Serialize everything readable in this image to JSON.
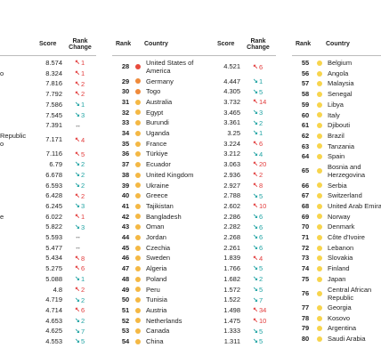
{
  "headers": {
    "panel1": {
      "score": "Score",
      "rank_change": "Rank Change"
    },
    "panel2": {
      "rank": "Rank",
      "country": "Country",
      "score": "Score",
      "rank_change": "Rank Change"
    },
    "panel3": {
      "rank": "Rank",
      "country": "Country"
    }
  },
  "panel1_rows": [
    {
      "country": "",
      "score": "8.574",
      "dir": "down",
      "num": "1"
    },
    {
      "country": "o",
      "score": "8.324",
      "dir": "down",
      "num": "1"
    },
    {
      "country": "",
      "score": "7.816",
      "dir": "down",
      "num": "2"
    },
    {
      "country": "",
      "score": "7.792",
      "dir": "down",
      "num": "2"
    },
    {
      "country": "",
      "score": "7.586",
      "dir": "up",
      "num": "1"
    },
    {
      "country": "",
      "score": "7.545",
      "dir": "up",
      "num": "3"
    },
    {
      "country": "",
      "score": "7.391",
      "dir": "same",
      "num": ""
    },
    {
      "country": "Republic\no",
      "score": "7.171",
      "dir": "down",
      "num": "4",
      "two": true
    },
    {
      "country": "",
      "score": "7.116",
      "dir": "down",
      "num": "5"
    },
    {
      "country": "",
      "score": "6.79",
      "dir": "up",
      "num": "2"
    },
    {
      "country": "",
      "score": "6.678",
      "dir": "up",
      "num": "2"
    },
    {
      "country": "",
      "score": "6.593",
      "dir": "up",
      "num": "2"
    },
    {
      "country": "",
      "score": "6.428",
      "dir": "down",
      "num": "2"
    },
    {
      "country": "",
      "score": "6.245",
      "dir": "up",
      "num": "3"
    },
    {
      "country": "e",
      "score": "6.022",
      "dir": "down",
      "num": "1"
    },
    {
      "country": "",
      "score": "5.822",
      "dir": "up",
      "num": "3"
    },
    {
      "country": "",
      "score": "5.593",
      "dir": "same",
      "num": ""
    },
    {
      "country": "",
      "score": "5.477",
      "dir": "same",
      "num": ""
    },
    {
      "country": "",
      "score": "5.434",
      "dir": "down",
      "num": "8"
    },
    {
      "country": "",
      "score": "5.275",
      "dir": "down",
      "num": "6"
    },
    {
      "country": "",
      "score": "5.088",
      "dir": "up",
      "num": "1"
    },
    {
      "country": "",
      "score": "4.8",
      "dir": "down",
      "num": "2"
    },
    {
      "country": "",
      "score": "4.719",
      "dir": "up",
      "num": "2"
    },
    {
      "country": "",
      "score": "4.714",
      "dir": "down",
      "num": "6"
    },
    {
      "country": "",
      "score": "4.653",
      "dir": "up",
      "num": "2"
    },
    {
      "country": "",
      "score": "4.625",
      "dir": "up",
      "num": "7"
    },
    {
      "country": "",
      "score": "4.553",
      "dir": "up",
      "num": "5"
    }
  ],
  "panel2_rows": [
    {
      "rank": "28",
      "country": "United States of\nAmerica",
      "score": "4.521",
      "dir": "down",
      "num": "6",
      "color": "#e84a3c",
      "two": true
    },
    {
      "rank": "29",
      "country": "Germany",
      "score": "4.447",
      "dir": "up",
      "num": "1",
      "color": "#ef8a3a"
    },
    {
      "rank": "30",
      "country": "Togo",
      "score": "4.305",
      "dir": "up",
      "num": "5",
      "color": "#ef8a3a"
    },
    {
      "rank": "31",
      "country": "Australia",
      "score": "3.732",
      "dir": "down",
      "num": "14",
      "color": "#f4b844"
    },
    {
      "rank": "32",
      "country": "Egypt",
      "score": "3.465",
      "dir": "up",
      "num": "3",
      "color": "#f4b844"
    },
    {
      "rank": "33",
      "country": "Burundi",
      "score": "3.361",
      "dir": "up",
      "num": "2",
      "color": "#f4b844"
    },
    {
      "rank": "34",
      "country": "Uganda",
      "score": "3.25",
      "dir": "up",
      "num": "1",
      "color": "#f4b844"
    },
    {
      "rank": "35",
      "country": "France",
      "score": "3.224",
      "dir": "down",
      "num": "6",
      "color": "#f4b844"
    },
    {
      "rank": "36",
      "country": "Türkiye",
      "score": "3.212",
      "dir": "up",
      "num": "4",
      "color": "#f4b844"
    },
    {
      "rank": "37",
      "country": "Ecuador",
      "score": "3.063",
      "dir": "down",
      "num": "20",
      "color": "#f4b844"
    },
    {
      "rank": "38",
      "country": "United Kingdom",
      "score": "2.936",
      "dir": "down",
      "num": "2",
      "color": "#f4b844"
    },
    {
      "rank": "39",
      "country": "Ukraine",
      "score": "2.927",
      "dir": "down",
      "num": "8",
      "color": "#f4b844"
    },
    {
      "rank": "40",
      "country": "Greece",
      "score": "2.788",
      "dir": "up",
      "num": "5",
      "color": "#f4b844"
    },
    {
      "rank": "41",
      "country": "Tajikistan",
      "score": "2.602",
      "dir": "down",
      "num": "10",
      "color": "#f4b844"
    },
    {
      "rank": "42",
      "country": "Bangladesh",
      "score": "2.286",
      "dir": "up",
      "num": "6",
      "color": "#f4b844"
    },
    {
      "rank": "43",
      "country": "Oman",
      "score": "2.282",
      "dir": "up",
      "num": "6",
      "color": "#f4b844"
    },
    {
      "rank": "44",
      "country": "Jordan",
      "score": "2.268",
      "dir": "up",
      "num": "6",
      "color": "#f4b844"
    },
    {
      "rank": "45",
      "country": "Czechia",
      "score": "2.261",
      "dir": "up",
      "num": "6",
      "color": "#f4b844"
    },
    {
      "rank": "46",
      "country": "Sweden",
      "score": "1.839",
      "dir": "down",
      "num": "4",
      "color": "#f4b844"
    },
    {
      "rank": "47",
      "country": "Algeria",
      "score": "1.766",
      "dir": "up",
      "num": "5",
      "color": "#f4b844"
    },
    {
      "rank": "48",
      "country": "Poland",
      "score": "1.682",
      "dir": "up",
      "num": "2",
      "color": "#f4b844"
    },
    {
      "rank": "49",
      "country": "Peru",
      "score": "1.572",
      "dir": "up",
      "num": "5",
      "color": "#f4b844"
    },
    {
      "rank": "50",
      "country": "Tunisia",
      "score": "1.522",
      "dir": "up",
      "num": "7",
      "color": "#f4b844"
    },
    {
      "rank": "51",
      "country": "Austria",
      "score": "1.498",
      "dir": "down",
      "num": "34",
      "color": "#f4b844"
    },
    {
      "rank": "52",
      "country": "Netherlands",
      "score": "1.475",
      "dir": "down",
      "num": "10",
      "color": "#f4b844"
    },
    {
      "rank": "53",
      "country": "Canada",
      "score": "1.333",
      "dir": "up",
      "num": "5",
      "color": "#f4b844"
    },
    {
      "rank": "54",
      "country": "China",
      "score": "1.311",
      "dir": "up",
      "num": "5",
      "color": "#f4b844"
    }
  ],
  "panel3_rows": [
    {
      "rank": "55",
      "country": "Belgium",
      "color": "#f7d44c"
    },
    {
      "rank": "56",
      "country": "Angola",
      "color": "#f7d44c"
    },
    {
      "rank": "57",
      "country": "Malaysia",
      "color": "#f7d44c"
    },
    {
      "rank": "58",
      "country": "Senegal",
      "color": "#f7d44c"
    },
    {
      "rank": "59",
      "country": "Libya",
      "color": "#f7d44c"
    },
    {
      "rank": "60",
      "country": "Italy",
      "color": "#f7d44c"
    },
    {
      "rank": "61",
      "country": "Djibouti",
      "color": "#f7d44c"
    },
    {
      "rank": "62",
      "country": "Brazil",
      "color": "#f7d44c"
    },
    {
      "rank": "63",
      "country": "Tanzania",
      "color": "#f7d44c"
    },
    {
      "rank": "64",
      "country": "Spain",
      "color": "#f7d44c"
    },
    {
      "rank": "65",
      "country": "Bosnia and\nHerzegovina",
      "color": "#f7d44c",
      "two": true
    },
    {
      "rank": "66",
      "country": "Serbia",
      "color": "#f7d44c"
    },
    {
      "rank": "67",
      "country": "Switzerland",
      "color": "#f7d44c"
    },
    {
      "rank": "68",
      "country": "United Arab Emira",
      "color": "#f7d44c"
    },
    {
      "rank": "69",
      "country": "Norway",
      "color": "#f7d44c"
    },
    {
      "rank": "70",
      "country": "Denmark",
      "color": "#f7d44c"
    },
    {
      "rank": "71",
      "country": "Côte d'Ivoire",
      "color": "#f7d44c"
    },
    {
      "rank": "72",
      "country": "Lebanon",
      "color": "#f7d44c"
    },
    {
      "rank": "73",
      "country": "Slovakia",
      "color": "#f7d44c"
    },
    {
      "rank": "74",
      "country": "Finland",
      "color": "#f7d44c"
    },
    {
      "rank": "75",
      "country": "Japan",
      "color": "#f7d44c"
    },
    {
      "rank": "76",
      "country": "Central African\nRepublic",
      "color": "#f7d44c",
      "two": true
    },
    {
      "rank": "77",
      "country": "Georgia",
      "color": "#f7d44c"
    },
    {
      "rank": "78",
      "country": "Kosovo",
      "color": "#f7d44c"
    },
    {
      "rank": "79",
      "country": "Argentina",
      "color": "#f7d44c"
    },
    {
      "rank": "80",
      "country": "Saudi Arabia",
      "color": "#f7d44c"
    }
  ]
}
